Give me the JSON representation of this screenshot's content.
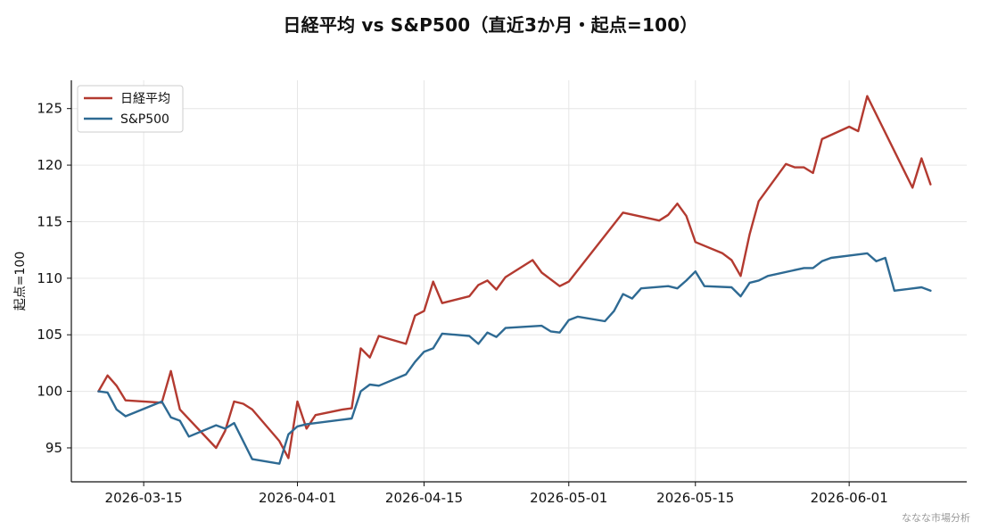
{
  "chart_data": {
    "type": "line",
    "title": "日経平均 vs S&P500（直近3か月・起点=100）",
    "xlabel": "",
    "ylabel": "起点=100",
    "xlim": [
      "2026-03-07",
      "2026-06-14"
    ],
    "ylim": [
      92,
      127.5
    ],
    "yticks": [
      95,
      100,
      105,
      110,
      115,
      120,
      125
    ],
    "xticks": [
      "2026-03-15",
      "2026-04-01",
      "2026-04-15",
      "2026-05-01",
      "2026-05-15",
      "2026-06-01"
    ],
    "grid": true,
    "legend_position": "top-left",
    "series": [
      {
        "name": "日経平均",
        "color": "#b33a30",
        "points": [
          [
            "2026-03-10",
            100.0
          ],
          [
            "2026-03-11",
            101.4
          ],
          [
            "2026-03-12",
            100.5
          ],
          [
            "2026-03-13",
            99.2
          ],
          [
            "2026-03-17",
            99.0
          ],
          [
            "2026-03-18",
            101.8
          ],
          [
            "2026-03-19",
            98.4
          ],
          [
            "2026-03-23",
            95.0
          ],
          [
            "2026-03-24",
            96.5
          ],
          [
            "2026-03-25",
            99.1
          ],
          [
            "2026-03-26",
            98.9
          ],
          [
            "2026-03-27",
            98.4
          ],
          [
            "2026-03-30",
            95.6
          ],
          [
            "2026-03-31",
            94.1
          ],
          [
            "2026-04-01",
            99.1
          ],
          [
            "2026-04-02",
            96.7
          ],
          [
            "2026-04-03",
            97.9
          ],
          [
            "2026-04-06",
            98.4
          ],
          [
            "2026-04-07",
            98.5
          ],
          [
            "2026-04-08",
            103.8
          ],
          [
            "2026-04-09",
            103.0
          ],
          [
            "2026-04-10",
            104.9
          ],
          [
            "2026-04-13",
            104.2
          ],
          [
            "2026-04-14",
            106.7
          ],
          [
            "2026-04-15",
            107.1
          ],
          [
            "2026-04-16",
            109.7
          ],
          [
            "2026-04-17",
            107.8
          ],
          [
            "2026-04-20",
            108.4
          ],
          [
            "2026-04-21",
            109.4
          ],
          [
            "2026-04-22",
            109.8
          ],
          [
            "2026-04-23",
            109.0
          ],
          [
            "2026-04-24",
            110.1
          ],
          [
            "2026-04-27",
            111.6
          ],
          [
            "2026-04-28",
            110.5
          ],
          [
            "2026-04-30",
            109.3
          ],
          [
            "2026-05-01",
            109.7
          ],
          [
            "2026-05-07",
            115.8
          ],
          [
            "2026-05-11",
            115.1
          ],
          [
            "2026-05-12",
            115.6
          ],
          [
            "2026-05-13",
            116.6
          ],
          [
            "2026-05-14",
            115.5
          ],
          [
            "2026-05-15",
            113.2
          ],
          [
            "2026-05-18",
            112.2
          ],
          [
            "2026-05-19",
            111.6
          ],
          [
            "2026-05-20",
            110.2
          ],
          [
            "2026-05-21",
            113.9
          ],
          [
            "2026-05-22",
            116.8
          ],
          [
            "2026-05-25",
            120.1
          ],
          [
            "2026-05-26",
            119.8
          ],
          [
            "2026-05-27",
            119.8
          ],
          [
            "2026-05-28",
            119.3
          ],
          [
            "2026-05-29",
            122.3
          ],
          [
            "2026-06-01",
            123.4
          ],
          [
            "2026-06-02",
            123.0
          ],
          [
            "2026-06-03",
            126.1
          ],
          [
            "2026-06-08",
            118.0
          ],
          [
            "2026-06-09",
            120.6
          ],
          [
            "2026-06-10",
            118.3
          ]
        ]
      },
      {
        "name": "S&P500",
        "color": "#2e6a93",
        "points": [
          [
            "2026-03-10",
            100.0
          ],
          [
            "2026-03-11",
            99.9
          ],
          [
            "2026-03-12",
            98.4
          ],
          [
            "2026-03-13",
            97.8
          ],
          [
            "2026-03-17",
            99.1
          ],
          [
            "2026-03-18",
            97.7
          ],
          [
            "2026-03-19",
            97.4
          ],
          [
            "2026-03-20",
            96.0
          ],
          [
            "2026-03-23",
            97.0
          ],
          [
            "2026-03-24",
            96.7
          ],
          [
            "2026-03-25",
            97.2
          ],
          [
            "2026-03-27",
            94.0
          ],
          [
            "2026-03-30",
            93.6
          ],
          [
            "2026-03-31",
            96.2
          ],
          [
            "2026-04-01",
            96.9
          ],
          [
            "2026-04-02",
            97.1
          ],
          [
            "2026-04-06",
            97.5
          ],
          [
            "2026-04-07",
            97.6
          ],
          [
            "2026-04-08",
            100.0
          ],
          [
            "2026-04-09",
            100.6
          ],
          [
            "2026-04-10",
            100.5
          ],
          [
            "2026-04-13",
            101.5
          ],
          [
            "2026-04-14",
            102.6
          ],
          [
            "2026-04-15",
            103.5
          ],
          [
            "2026-04-16",
            103.8
          ],
          [
            "2026-04-17",
            105.1
          ],
          [
            "2026-04-20",
            104.9
          ],
          [
            "2026-04-21",
            104.2
          ],
          [
            "2026-04-22",
            105.2
          ],
          [
            "2026-04-23",
            104.8
          ],
          [
            "2026-04-24",
            105.6
          ],
          [
            "2026-04-28",
            105.8
          ],
          [
            "2026-04-29",
            105.3
          ],
          [
            "2026-04-30",
            105.2
          ],
          [
            "2026-05-01",
            106.3
          ],
          [
            "2026-05-02",
            106.6
          ],
          [
            "2026-05-05",
            106.2
          ],
          [
            "2026-05-06",
            107.1
          ],
          [
            "2026-05-07",
            108.6
          ],
          [
            "2026-05-08",
            108.2
          ],
          [
            "2026-05-09",
            109.1
          ],
          [
            "2026-05-12",
            109.3
          ],
          [
            "2026-05-13",
            109.1
          ],
          [
            "2026-05-14",
            109.8
          ],
          [
            "2026-05-15",
            110.6
          ],
          [
            "2026-05-16",
            109.3
          ],
          [
            "2026-05-19",
            109.2
          ],
          [
            "2026-05-20",
            108.4
          ],
          [
            "2026-05-21",
            109.6
          ],
          [
            "2026-05-22",
            109.8
          ],
          [
            "2026-05-23",
            110.2
          ],
          [
            "2026-05-27",
            110.9
          ],
          [
            "2026-05-28",
            110.9
          ],
          [
            "2026-05-29",
            111.5
          ],
          [
            "2026-05-30",
            111.8
          ],
          [
            "2026-06-02",
            112.1
          ],
          [
            "2026-06-03",
            112.2
          ],
          [
            "2026-06-04",
            111.5
          ],
          [
            "2026-06-05",
            111.8
          ],
          [
            "2026-06-06",
            108.9
          ],
          [
            "2026-06-09",
            109.2
          ],
          [
            "2026-06-10",
            108.9
          ]
        ]
      }
    ]
  },
  "watermark": "ななな市場分析"
}
